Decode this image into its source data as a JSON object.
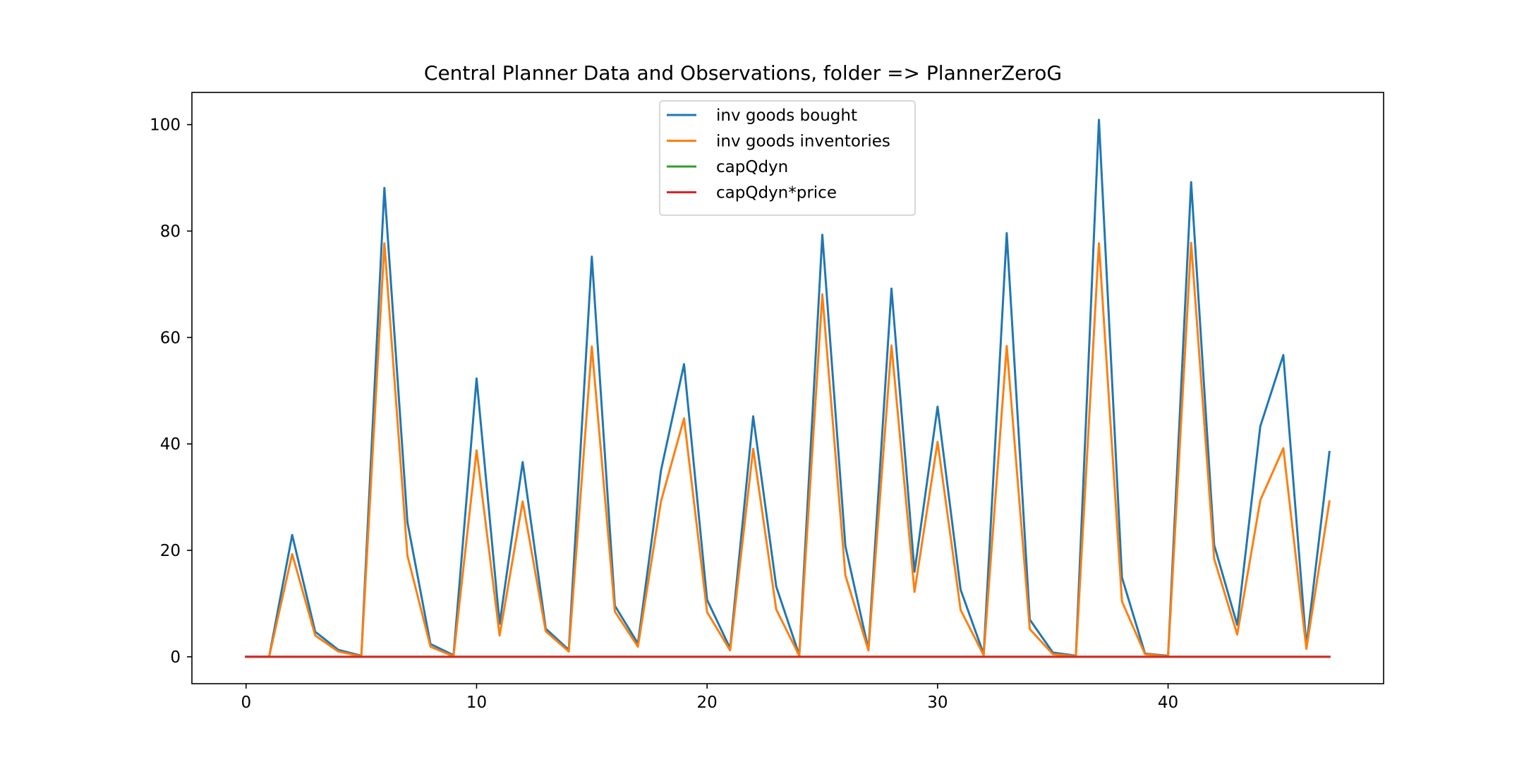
{
  "chart_data": {
    "type": "line",
    "title": "Central Planner Data and Observations, folder => PlannerZeroG",
    "xlabel": "",
    "ylabel": "",
    "xlim": [
      -2.35,
      49.35
    ],
    "ylim": [
      -5.05,
      106.05
    ],
    "x_ticks": [
      0,
      10,
      20,
      30,
      40
    ],
    "y_ticks": [
      0,
      20,
      40,
      60,
      80,
      100
    ],
    "grid": false,
    "legend_position": "top-center",
    "x": [
      0,
      1,
      2,
      3,
      4,
      5,
      6,
      7,
      8,
      9,
      10,
      11,
      12,
      13,
      14,
      15,
      16,
      17,
      18,
      19,
      20,
      21,
      22,
      23,
      24,
      25,
      26,
      27,
      28,
      29,
      30,
      31,
      32,
      33,
      34,
      35,
      36,
      37,
      38,
      39,
      40,
      41,
      42,
      43,
      44,
      45,
      46,
      47
    ],
    "series": [
      {
        "name": "inv goods bought",
        "color": "#1f77b4",
        "values": [
          0,
          0,
          22.9,
          4.7,
          1.3,
          0.2,
          88.1,
          25.3,
          2.4,
          0.3,
          52.3,
          6.2,
          36.6,
          5.3,
          1.3,
          75.2,
          9.6,
          2.5,
          35,
          55,
          10.7,
          1.6,
          45.2,
          13.2,
          0.3,
          79.3,
          20.8,
          1.4,
          69.2,
          16,
          47,
          12.6,
          0.5,
          79.6,
          7,
          0.8,
          0.2,
          100.9,
          14.9,
          0.6,
          0.2,
          89.2,
          21,
          6,
          43.3,
          56.7,
          2,
          38.5
        ]
      },
      {
        "name": "inv goods inventories",
        "color": "#ff7f0e",
        "values": [
          0,
          0,
          19.3,
          4,
          1,
          0.1,
          77.7,
          19,
          1.9,
          0.1,
          38.8,
          4,
          29.2,
          4.8,
          1,
          58.3,
          8.5,
          1.9,
          29.2,
          44.8,
          8.4,
          1.2,
          39.1,
          8.9,
          0.2,
          68.1,
          15.3,
          1.2,
          58.5,
          12.2,
          40.4,
          8.8,
          0.3,
          58.4,
          5.2,
          0.5,
          0.1,
          77.7,
          10.4,
          0.5,
          0.1,
          77.8,
          18.4,
          4.2,
          29.4,
          39.2,
          1.5,
          29.2
        ]
      },
      {
        "name": "capQdyn",
        "color": "#2ca02c",
        "values": [
          0,
          0,
          0,
          0,
          0,
          0,
          0,
          0,
          0,
          0,
          0,
          0,
          0,
          0,
          0,
          0,
          0,
          0,
          0,
          0,
          0,
          0,
          0,
          0,
          0,
          0,
          0,
          0,
          0,
          0,
          0,
          0,
          0,
          0,
          0,
          0,
          0,
          0,
          0,
          0,
          0,
          0,
          0,
          0,
          0,
          0,
          0,
          0
        ]
      },
      {
        "name": "capQdyn*price",
        "color": "#d62728",
        "values": [
          0,
          0,
          0,
          0,
          0,
          0,
          0,
          0,
          0,
          0,
          0,
          0,
          0,
          0,
          0,
          0,
          0,
          0,
          0,
          0,
          0,
          0,
          0,
          0,
          0,
          0,
          0,
          0,
          0,
          0,
          0,
          0,
          0,
          0,
          0,
          0,
          0,
          0,
          0,
          0,
          0,
          0,
          0,
          0,
          0,
          0,
          0,
          0
        ]
      }
    ]
  }
}
